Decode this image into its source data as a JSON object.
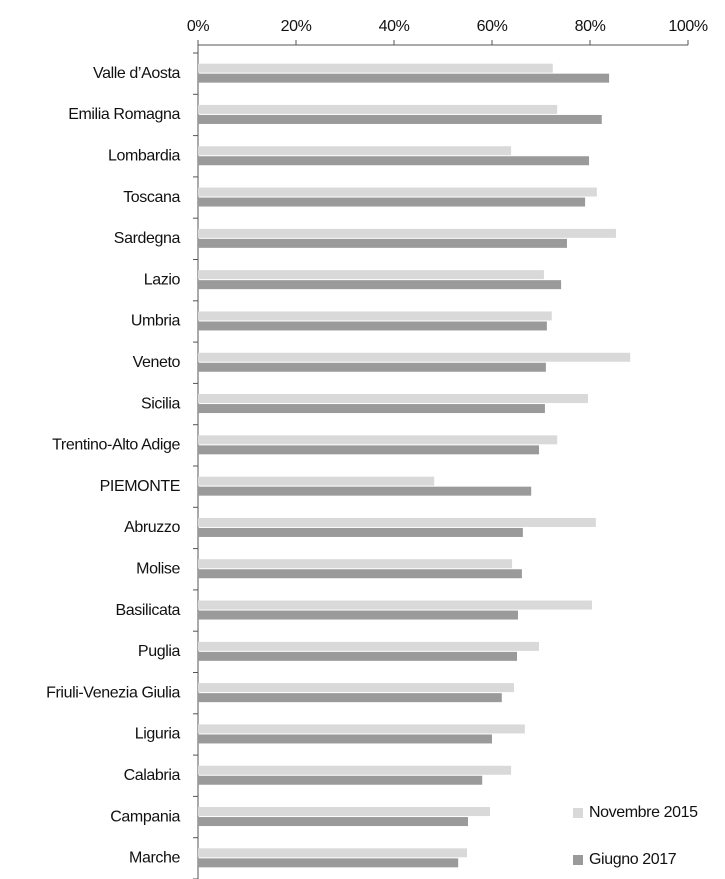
{
  "chart_data": {
    "type": "hbar",
    "categories": [
      "Valle d’Aosta",
      "Emilia Romagna",
      "Lombardia",
      "Toscana",
      "Sardegna",
      "Lazio",
      "Umbria",
      "Veneto",
      "Sicilia",
      "Trentino-Alto Adige",
      "PIEMONTE",
      "Abruzzo",
      "Molise",
      "Basilicata",
      "Puglia",
      "Friuli-Venezia Giulia",
      "Liguria",
      "Calabria",
      "Campania",
      "Marche"
    ],
    "series": [
      {
        "name": "Novembre 2015",
        "color": "#d9d9d9",
        "values": [
          72.4,
          73.3,
          63.9,
          81.4,
          85.3,
          70.6,
          72.2,
          88.2,
          79.6,
          73.3,
          48.2,
          81.2,
          64.1,
          80.4,
          69.6,
          64.5,
          66.7,
          63.9,
          59.6,
          54.9
        ]
      },
      {
        "name": "Giugno 2017",
        "color": "#9a9a9a",
        "values": [
          83.9,
          82.4,
          79.8,
          79.0,
          75.3,
          74.1,
          71.2,
          71.0,
          70.8,
          69.6,
          68.0,
          66.3,
          66.1,
          65.3,
          65.1,
          62.0,
          60.0,
          58.0,
          55.1,
          53.1
        ]
      }
    ],
    "xlim": [
      0,
      100
    ],
    "xticks": [
      {
        "value": 0,
        "label": "0%"
      },
      {
        "value": 20,
        "label": "20%"
      },
      {
        "value": 40,
        "label": "40%"
      },
      {
        "value": 60,
        "label": "60%"
      },
      {
        "value": 80,
        "label": "80%"
      },
      {
        "value": 100,
        "label": "100%"
      }
    ],
    "legend": "bottom-right"
  }
}
